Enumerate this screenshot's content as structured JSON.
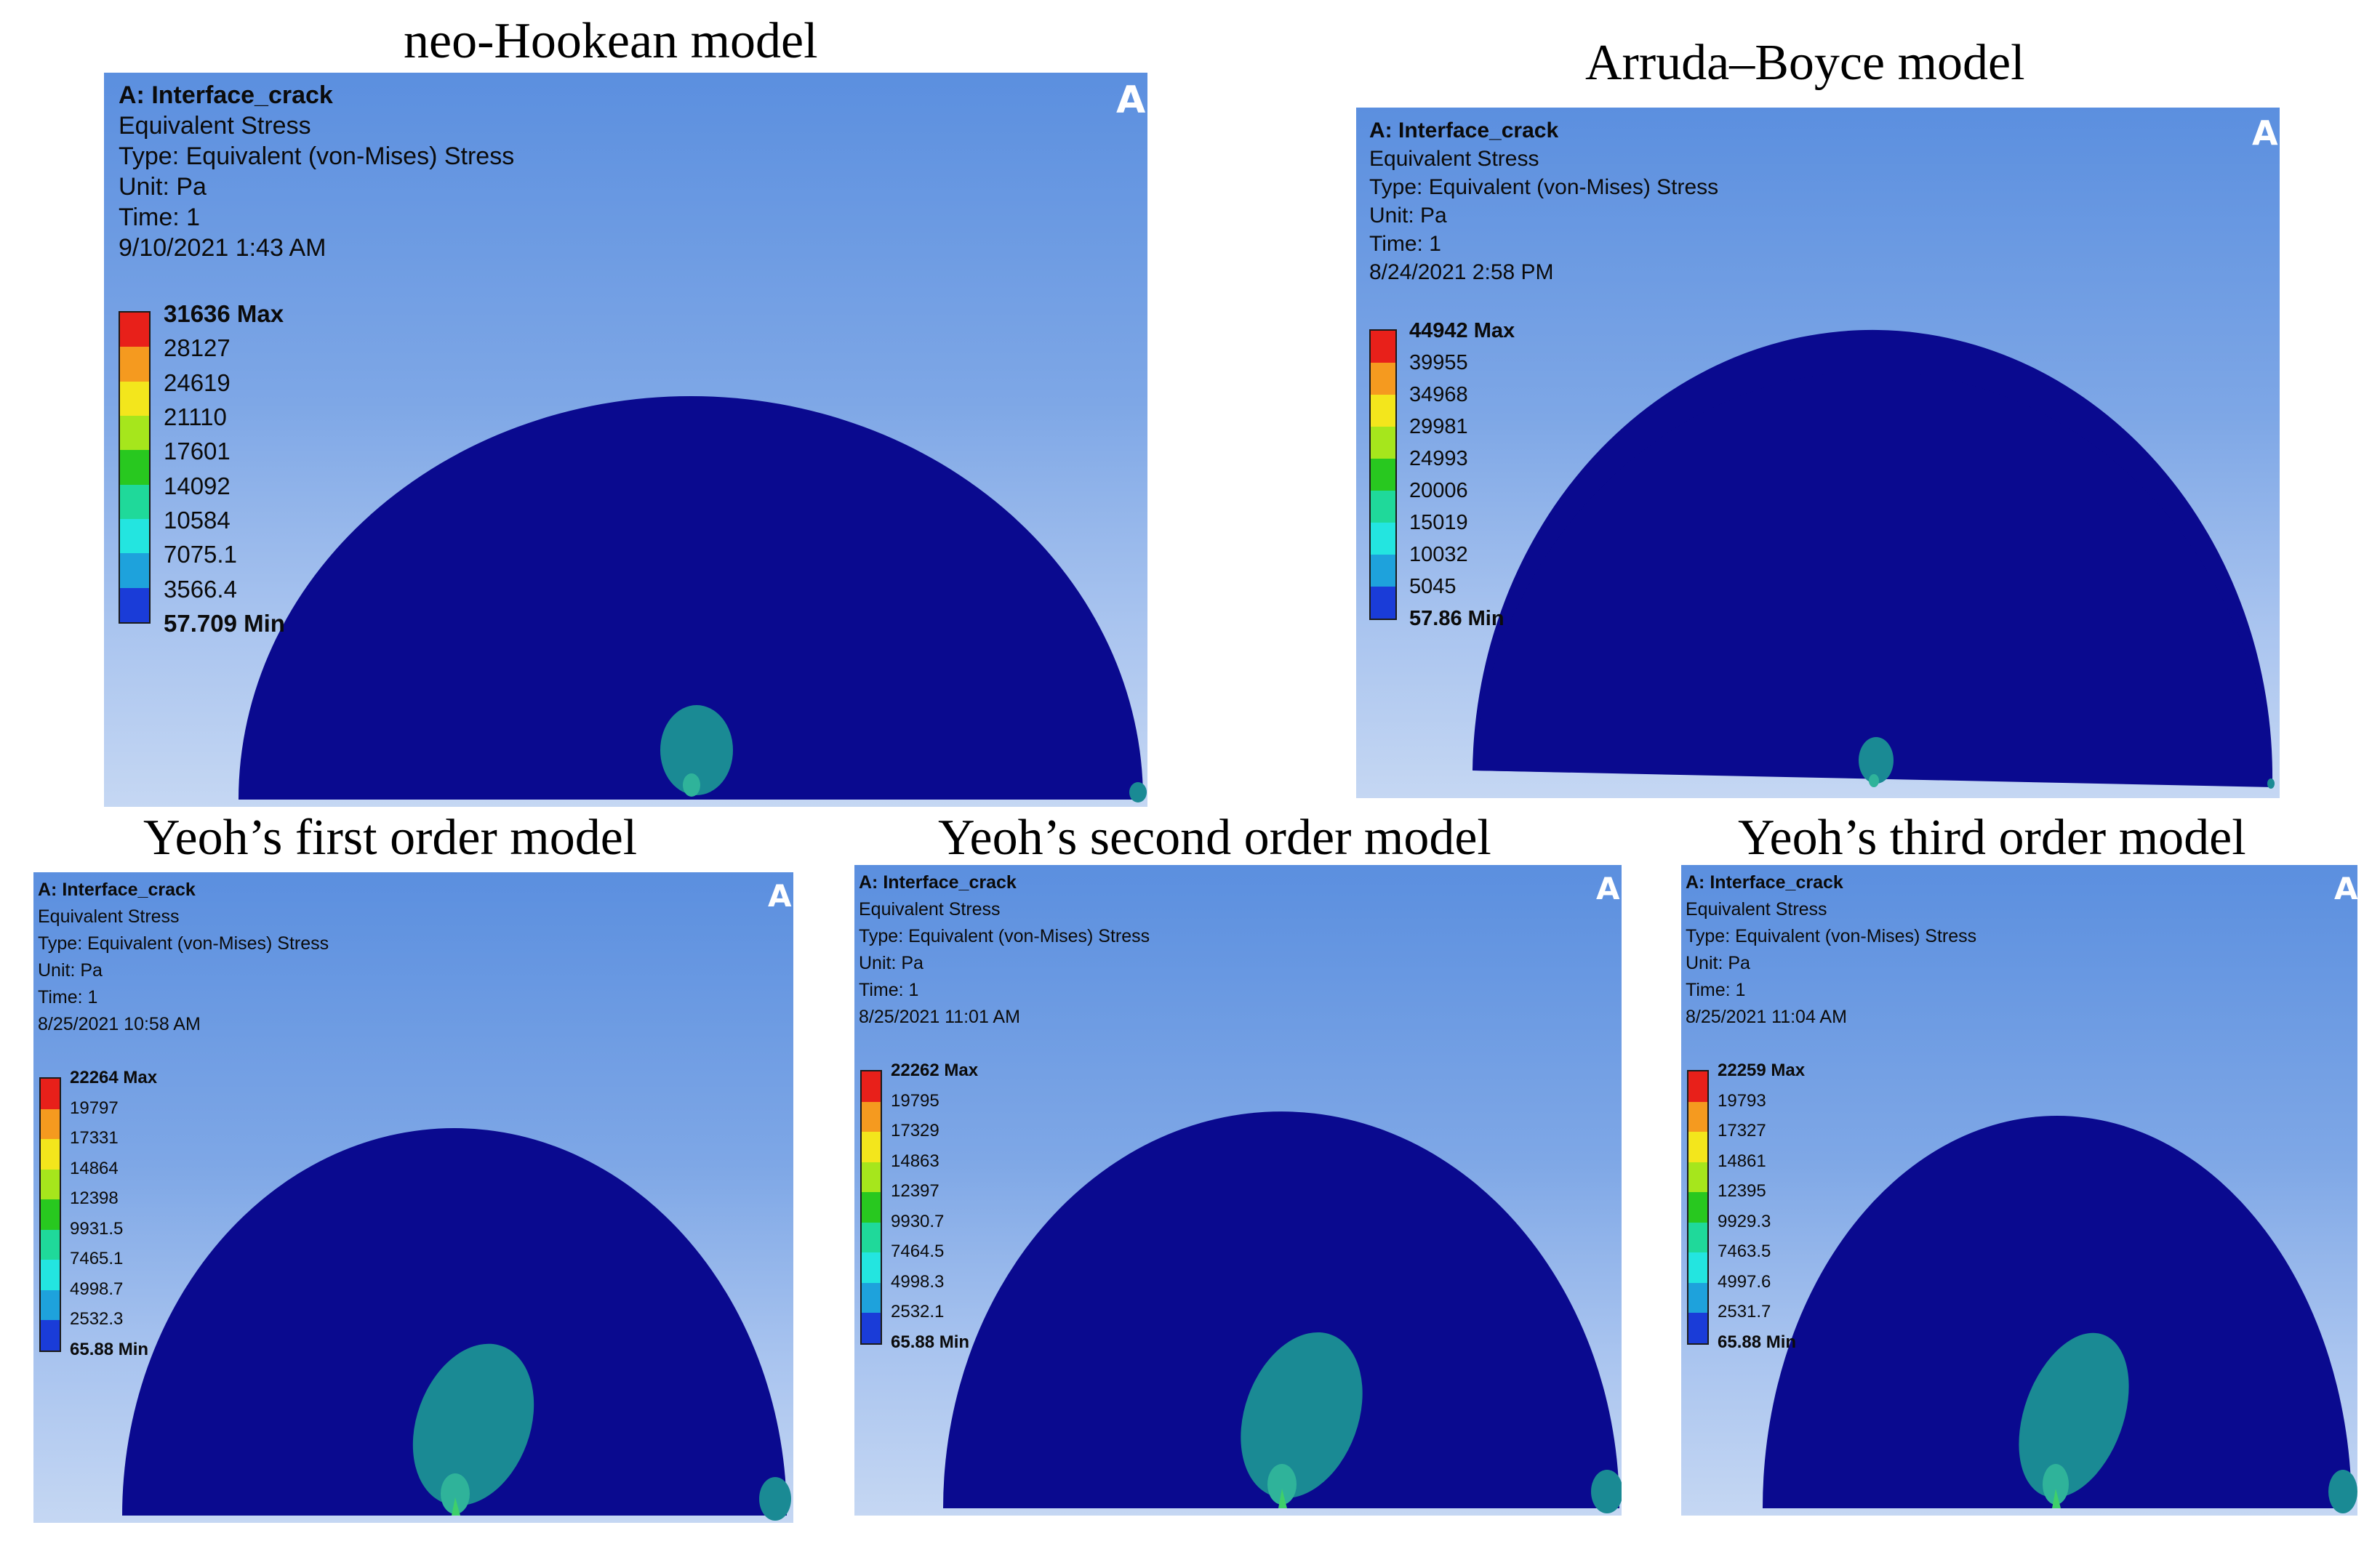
{
  "colors": {
    "mesh_blue": "#0a0a8f",
    "crack_tip_teal": "#1a8a94",
    "crack_tip_core": "#2fb39a",
    "crack_tip_point": "#3fcf6a",
    "legend_scale": [
      "#e8201a",
      "#f59a1f",
      "#f3e61c",
      "#a6e61c",
      "#28c81f",
      "#1fd99a",
      "#23e5e0",
      "#1ea2dc",
      "#1a3cd8"
    ]
  },
  "panels": [
    {
      "caption": "neo-Hookean model",
      "logo": "A",
      "info": [
        "A: Interface_crack",
        "Equivalent Stress",
        "Type: Equivalent (von-Mises) Stress",
        "Unit: Pa",
        "Time: 1",
        "9/10/2021 1:43 AM"
      ],
      "legend": [
        "31636 Max",
        "28127",
        "24619",
        "21110",
        "17601",
        "14092",
        "10584",
        "7075.1",
        "3566.4",
        "57.709 Min"
      ]
    },
    {
      "caption": "Arruda–Boyce model",
      "logo": "A",
      "info": [
        "A: Interface_crack",
        "Equivalent Stress",
        "Type: Equivalent (von-Mises) Stress",
        "Unit: Pa",
        "Time: 1",
        "8/24/2021 2:58 PM"
      ],
      "legend": [
        "44942 Max",
        "39955",
        "34968",
        "29981",
        "24993",
        "20006",
        "15019",
        "10032",
        "5045",
        "57.86 Min"
      ]
    },
    {
      "caption": "Yeoh’s first order model",
      "logo": "A",
      "info": [
        "A: Interface_crack",
        "Equivalent Stress",
        "Type: Equivalent (von-Mises) Stress",
        "Unit: Pa",
        "Time: 1",
        "8/25/2021 10:58 AM"
      ],
      "legend": [
        "22264 Max",
        "19797",
        "17331",
        "14864",
        "12398",
        "9931.5",
        "7465.1",
        "4998.7",
        "2532.3",
        "65.88 Min"
      ]
    },
    {
      "caption": "Yeoh’s second order model",
      "logo": "A",
      "info": [
        "A: Interface_crack",
        "Equivalent Stress",
        "Type: Equivalent (von-Mises) Stress",
        "Unit: Pa",
        "Time: 1",
        "8/25/2021 11:01 AM"
      ],
      "legend": [
        "22262 Max",
        "19795",
        "17329",
        "14863",
        "12397",
        "9930.7",
        "7464.5",
        "4998.3",
        "2532.1",
        "65.88 Min"
      ]
    },
    {
      "caption": "Yeoh’s third order model",
      "logo": "A",
      "info": [
        "A: Interface_crack",
        "Equivalent Stress",
        "Type: Equivalent (von-Mises) Stress",
        "Unit: Pa",
        "Time: 1",
        "8/25/2021 11:04 AM"
      ],
      "legend": [
        "22259 Max",
        "19793",
        "17327",
        "14861",
        "12395",
        "9929.3",
        "7463.5",
        "4997.6",
        "2531.7",
        "65.88 Min"
      ]
    }
  ]
}
